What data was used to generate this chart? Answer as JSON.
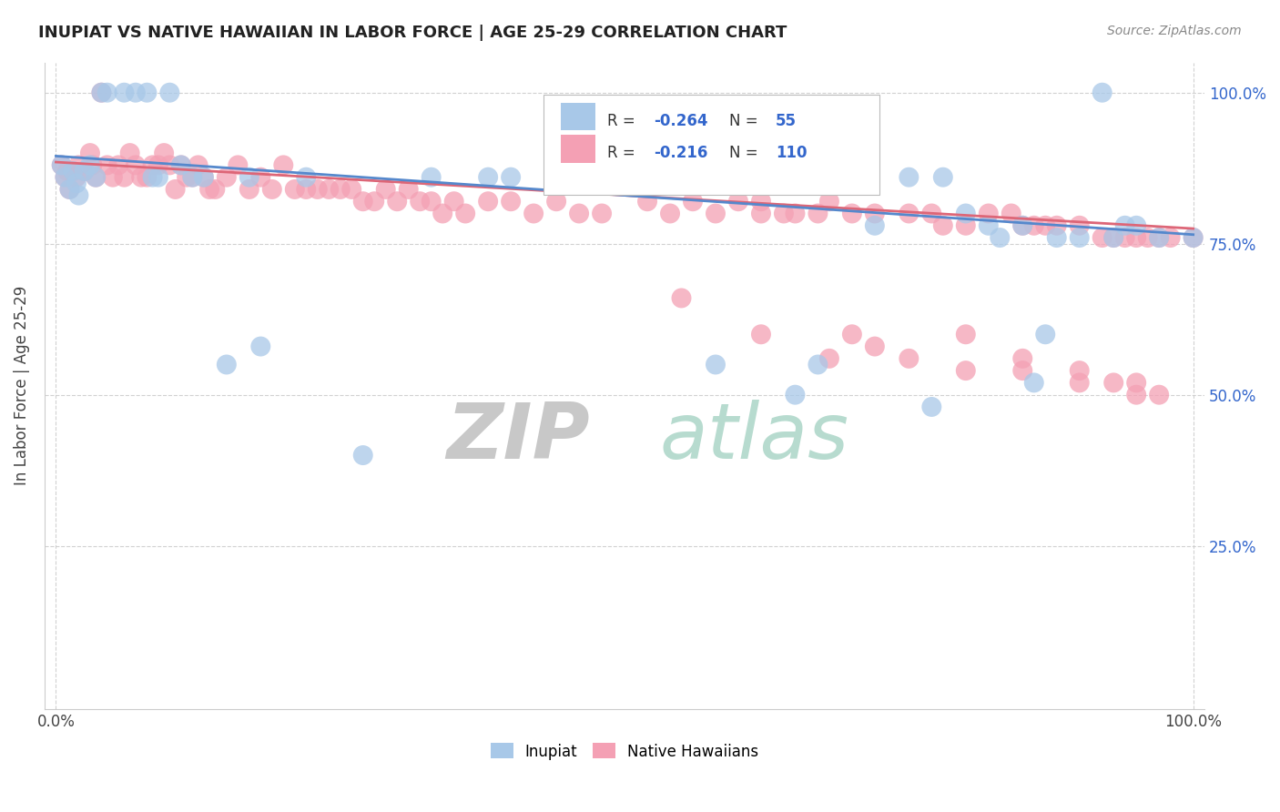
{
  "title": "INUPIAT VS NATIVE HAWAIIAN IN LABOR FORCE | AGE 25-29 CORRELATION CHART",
  "source_text": "Source: ZipAtlas.com",
  "ylabel": "In Labor Force | Age 25-29",
  "legend_labels": [
    "Inupiat",
    "Native Hawaiians"
  ],
  "r_inupiat": -0.264,
  "n_inupiat": 55,
  "r_hawaiian": -0.216,
  "n_hawaiian": 110,
  "inupiat_color": "#a8c8e8",
  "hawaiian_color": "#f4a0b4",
  "inupiat_line_color": "#5588cc",
  "hawaiian_line_color": "#dd6677",
  "y_tick_values": [
    0.25,
    0.5,
    0.75,
    1.0
  ],
  "y_tick_labels": [
    "25.0%",
    "50.0%",
    "75.0%",
    "100.0%"
  ],
  "xlim": [
    0.0,
    1.0
  ],
  "ylim": [
    0.0,
    1.05
  ],
  "inupiat_x": [
    0.005,
    0.008,
    0.012,
    0.015,
    0.018,
    0.02,
    0.025,
    0.03,
    0.035,
    0.04,
    0.045,
    0.06,
    0.07,
    0.08,
    0.085,
    0.09,
    0.1,
    0.11,
    0.12,
    0.13,
    0.15,
    0.17,
    0.18,
    0.22,
    0.27,
    0.33,
    0.38,
    0.4,
    0.48,
    0.5,
    0.55,
    0.58,
    0.62,
    0.65,
    0.67,
    0.68,
    0.7,
    0.72,
    0.75,
    0.77,
    0.78,
    0.8,
    0.82,
    0.83,
    0.85,
    0.86,
    0.87,
    0.88,
    0.9,
    0.92,
    0.93,
    0.94,
    0.95,
    0.97,
    1.0
  ],
  "inupiat_y": [
    0.88,
    0.86,
    0.84,
    0.87,
    0.85,
    0.83,
    0.87,
    0.88,
    0.86,
    1.0,
    1.0,
    1.0,
    1.0,
    1.0,
    0.86,
    0.86,
    1.0,
    0.88,
    0.86,
    0.86,
    0.55,
    0.86,
    0.58,
    0.86,
    0.4,
    0.86,
    0.86,
    0.86,
    0.86,
    0.86,
    0.86,
    0.55,
    0.86,
    0.5,
    0.55,
    0.86,
    0.86,
    0.78,
    0.86,
    0.48,
    0.86,
    0.8,
    0.78,
    0.76,
    0.78,
    0.52,
    0.6,
    0.76,
    0.76,
    1.0,
    0.76,
    0.78,
    0.78,
    0.76,
    0.76
  ],
  "hawaiian_x": [
    0.005,
    0.008,
    0.01,
    0.012,
    0.015,
    0.018,
    0.02,
    0.025,
    0.03,
    0.032,
    0.035,
    0.04,
    0.045,
    0.05,
    0.055,
    0.06,
    0.065,
    0.07,
    0.075,
    0.08,
    0.085,
    0.09,
    0.095,
    0.1,
    0.105,
    0.11,
    0.115,
    0.12,
    0.125,
    0.13,
    0.135,
    0.14,
    0.15,
    0.16,
    0.17,
    0.18,
    0.19,
    0.2,
    0.21,
    0.22,
    0.23,
    0.24,
    0.25,
    0.26,
    0.27,
    0.28,
    0.29,
    0.3,
    0.31,
    0.32,
    0.33,
    0.34,
    0.35,
    0.36,
    0.38,
    0.4,
    0.42,
    0.44,
    0.46,
    0.48,
    0.5,
    0.52,
    0.54,
    0.56,
    0.58,
    0.6,
    0.62,
    0.64,
    0.65,
    0.67,
    0.68,
    0.7,
    0.72,
    0.75,
    0.77,
    0.78,
    0.8,
    0.82,
    0.84,
    0.85,
    0.86,
    0.87,
    0.88,
    0.9,
    0.92,
    0.93,
    0.94,
    0.95,
    0.96,
    0.97,
    0.98,
    1.0,
    0.62,
    0.7,
    0.72,
    0.5,
    0.68,
    0.55,
    0.75,
    0.8,
    0.85,
    0.9,
    0.93,
    0.95,
    0.97,
    0.62,
    0.8,
    0.85,
    0.9,
    0.95
  ],
  "hawaiian_y": [
    0.88,
    0.86,
    0.87,
    0.84,
    0.87,
    0.86,
    0.88,
    0.87,
    0.9,
    0.88,
    0.86,
    1.0,
    0.88,
    0.86,
    0.88,
    0.86,
    0.9,
    0.88,
    0.86,
    0.86,
    0.88,
    0.88,
    0.9,
    0.88,
    0.84,
    0.88,
    0.86,
    0.86,
    0.88,
    0.86,
    0.84,
    0.84,
    0.86,
    0.88,
    0.84,
    0.86,
    0.84,
    0.88,
    0.84,
    0.84,
    0.84,
    0.84,
    0.84,
    0.84,
    0.82,
    0.82,
    0.84,
    0.82,
    0.84,
    0.82,
    0.82,
    0.8,
    0.82,
    0.8,
    0.82,
    0.82,
    0.8,
    0.82,
    0.8,
    0.8,
    0.88,
    0.82,
    0.8,
    0.82,
    0.8,
    0.82,
    0.82,
    0.8,
    0.8,
    0.8,
    0.82,
    0.8,
    0.8,
    0.8,
    0.8,
    0.78,
    0.78,
    0.8,
    0.8,
    0.78,
    0.78,
    0.78,
    0.78,
    0.78,
    0.76,
    0.76,
    0.76,
    0.76,
    0.76,
    0.76,
    0.76,
    0.76,
    0.6,
    0.6,
    0.58,
    0.86,
    0.56,
    0.66,
    0.56,
    0.54,
    0.54,
    0.52,
    0.52,
    0.5,
    0.5,
    0.8,
    0.6,
    0.56,
    0.54,
    0.52
  ]
}
